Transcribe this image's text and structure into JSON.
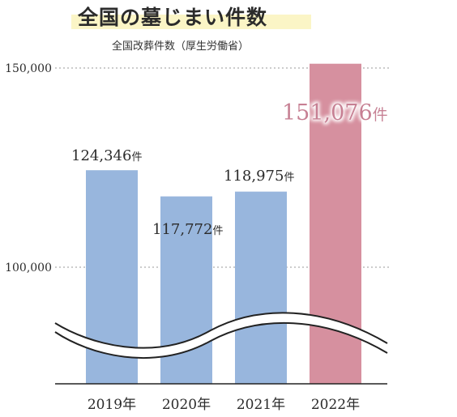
{
  "chart_data": {
    "type": "bar",
    "title": "全国の墓じまい件数",
    "subtitle": "全国改葬件数（厚生労働省）",
    "categories": [
      "2019年",
      "2020年",
      "2021年",
      "2022年"
    ],
    "values": [
      124346,
      117772,
      118975,
      151076
    ],
    "value_labels": [
      {
        "num": "124,346",
        "unit": "件"
      },
      {
        "num": "117,772",
        "unit": "件"
      },
      {
        "num": "118,975",
        "unit": "件"
      },
      {
        "num": "151,076",
        "unit": "件"
      }
    ],
    "y_ticks": [
      {
        "value": 100000,
        "label": "100,000"
      },
      {
        "value": 150000,
        "label": "150,000"
      }
    ],
    "ylim": [
      100000,
      150000
    ],
    "axis_break": true,
    "grid": "dotted",
    "colors": {
      "bar": "#98b6dd",
      "highlight": "#d6909f",
      "highlight_label": "#c77f93",
      "text": "#2b2b2b"
    }
  }
}
